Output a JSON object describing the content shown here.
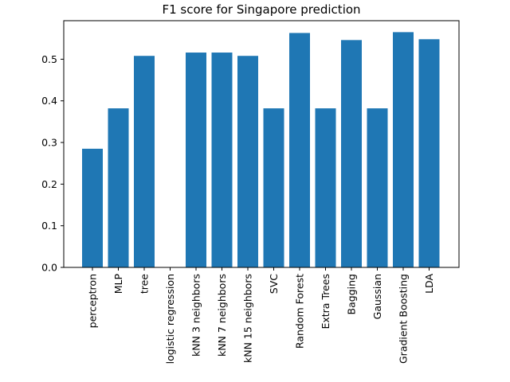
{
  "chart_data": {
    "type": "bar",
    "title": "F1 score for Singapore prediction",
    "xlabel": "",
    "ylabel": "",
    "categories": [
      "perceptron",
      "MLP",
      "tree",
      "logistic regression",
      "kNN 3 neighbors",
      "kNN 7 neighbors",
      "kNN 15 neighbors",
      "SVC",
      "Random Forest",
      "Extra Trees",
      "Bagging",
      "Gaussian",
      "Gradient Boosting",
      "LDA"
    ],
    "values": [
      0.285,
      0.382,
      0.508,
      0.0,
      0.516,
      0.516,
      0.508,
      0.382,
      0.563,
      0.382,
      0.546,
      0.382,
      0.565,
      0.548
    ],
    "ylim": [
      0,
      0.5925
    ],
    "yticks": [
      0.0,
      0.1,
      0.2,
      0.3,
      0.4,
      0.5
    ],
    "ytick_labels": [
      "0.0",
      "0.1",
      "0.2",
      "0.3",
      "0.4",
      "0.5"
    ],
    "bar_color": "#1f77b4",
    "grid": false,
    "legend": "none"
  }
}
